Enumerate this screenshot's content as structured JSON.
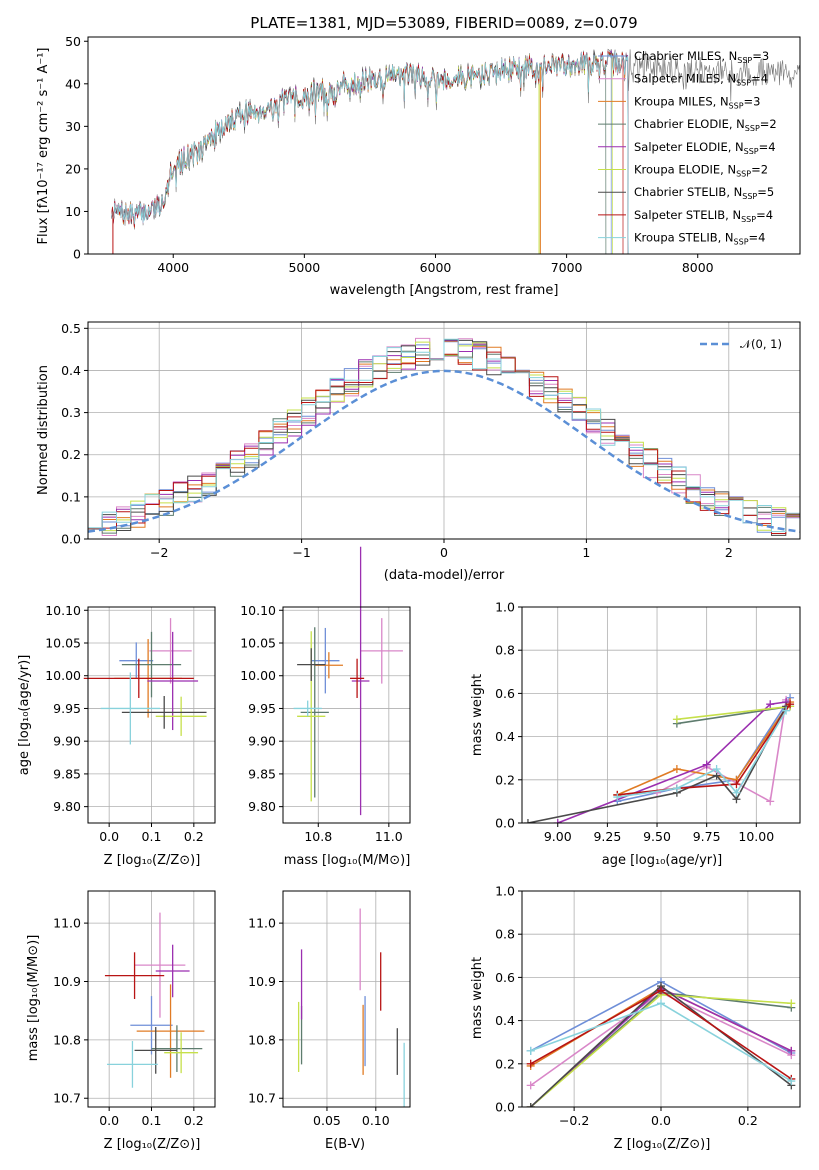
{
  "colors": [
    "#6f8fd8",
    "#d987c8",
    "#e07b24",
    "#5e7c6e",
    "#9b2fb0",
    "#c6e04a",
    "#4a4a4a",
    "#b81414",
    "#88d2dc"
  ],
  "spectrum": {
    "title": "PLATE=1381, MJD=53089, FIBERID=0089, z=0.079",
    "xlabel": "wavelength [Angstrom, rest frame]",
    "ylabel": "Flux [fλ10⁻¹⁷ erg cm⁻² s⁻¹ A⁻¹]",
    "xticks": [
      "4000",
      "5000",
      "6000",
      "7000",
      "8000"
    ],
    "yticks": [
      "0",
      "10",
      "20",
      "30",
      "40",
      "50"
    ],
    "legend": [
      "Chabrier MILES, N_SSP=3",
      "Salpeter MILES, N_SSP=4",
      "Kroupa MILES, N_SSP=3",
      "Chabrier ELODIE, N_SSP=2",
      "Salpeter ELODIE, N_SSP=4",
      "Kroupa ELODIE, N_SSP=2",
      "Chabrier STELIB, N_SSP=5",
      "Salpeter STELIB, N_SSP=4",
      "Kroupa STELIB, N_SSP=4"
    ]
  },
  "residuals": {
    "xlabel": "(data-model)/error",
    "ylabel": "Normed distribution",
    "xticks": [
      "−2",
      "−1",
      "0",
      "1",
      "2"
    ],
    "yticks": [
      "0.0",
      "0.1",
      "0.2",
      "0.3",
      "0.4",
      "0.5"
    ],
    "legend": "𝒩(0, 1)"
  },
  "panels": {
    "age_Z": {
      "xlabel": "Z [log₁₀(Z/Z⊙)]",
      "ylabel": "age  [log₁₀(age/yr)]",
      "xticks": [
        "0.0",
        "0.1",
        "0.2"
      ],
      "yticks": [
        "9.80",
        "9.85",
        "9.90",
        "9.95",
        "10.00",
        "10.05",
        "10.10"
      ]
    },
    "age_mass": {
      "xlabel": "mass [log₁₀(M/M⊙)]",
      "xticks": [
        "10.8",
        "11.0"
      ],
      "yticks": [
        "9.80",
        "9.85",
        "9.90",
        "9.95",
        "10.00",
        "10.05",
        "10.10"
      ]
    },
    "mw_age": {
      "xlabel": "age  [log₁₀(age/yr)]",
      "ylabel": "mass weight",
      "xticks": [
        "9.00",
        "9.25",
        "9.50",
        "9.75",
        "10.00"
      ],
      "yticks": [
        "0.0",
        "0.2",
        "0.4",
        "0.6",
        "0.8",
        "1.0"
      ]
    },
    "mass_Z": {
      "xlabel": "Z [log₁₀(Z/Z⊙)]",
      "ylabel": "mass [log₁₀(M/M⊙)]",
      "xticks": [
        "0.0",
        "0.1",
        "0.2"
      ],
      "yticks": [
        "10.7",
        "10.8",
        "10.9",
        "11.0"
      ]
    },
    "mass_ebv": {
      "xlabel": "E(B-V)",
      "xticks": [
        "0.05",
        "0.10"
      ],
      "yticks": [
        "10.7",
        "10.8",
        "10.9",
        "11.0"
      ]
    },
    "mw_Z": {
      "xlabel": "Z [log₁₀(Z/Z⊙)]",
      "ylabel": "mass weight",
      "xticks": [
        "−0.2",
        "0.0",
        "0.2"
      ],
      "yticks": [
        "0.0",
        "0.2",
        "0.4",
        "0.6",
        "0.8",
        "1.0"
      ]
    }
  },
  "chart_data": [
    {
      "type": "line",
      "xlim": [
        3350,
        8780
      ],
      "ylim": [
        0,
        51
      ],
      "spectrum_anchors": [
        [
          3530,
          10
        ],
        [
          3700,
          9
        ],
        [
          3800,
          10
        ],
        [
          3920,
          12
        ],
        [
          3980,
          20
        ],
        [
          4100,
          23
        ],
        [
          4200,
          24
        ],
        [
          4300,
          28
        ],
        [
          4400,
          30
        ],
        [
          4500,
          33
        ],
        [
          4700,
          34
        ],
        [
          4850,
          36
        ],
        [
          5000,
          37
        ],
        [
          5100,
          39
        ],
        [
          5200,
          37
        ],
        [
          5300,
          40
        ],
        [
          5500,
          41
        ],
        [
          5700,
          42
        ],
        [
          5900,
          42
        ],
        [
          6100,
          41
        ],
        [
          6300,
          42
        ],
        [
          6500,
          43
        ],
        [
          6700,
          44
        ],
        [
          6900,
          44
        ],
        [
          7100,
          45
        ],
        [
          7300,
          45
        ],
        [
          7500,
          45
        ],
        [
          7700,
          44
        ],
        [
          7900,
          43
        ],
        [
          8100,
          43
        ],
        [
          8300,
          43
        ],
        [
          8500,
          43
        ],
        [
          8780,
          42
        ]
      ]
    },
    {
      "type": "bar",
      "xlim": [
        -2.5,
        2.5
      ],
      "ylim": [
        0,
        0.515
      ],
      "bin_width": 0.1,
      "gaussian": {
        "mean": 0,
        "sigma": 1
      }
    },
    {
      "type": "scatter",
      "xlim": [
        -0.05,
        0.25
      ],
      "ylim": [
        9.775,
        10.105
      ],
      "points": [
        {
          "x": 0.064,
          "y": 10.023,
          "xerr": 0.04,
          "yerr": 0.028
        },
        {
          "x": 0.145,
          "y": 10.038,
          "xerr": 0.05,
          "yerr": 0.05
        },
        {
          "x": 0.092,
          "y": 9.996,
          "xerr": 0.08,
          "yerr": 0.06
        },
        {
          "x": 0.1,
          "y": 10.017,
          "xerr": 0.07,
          "yerr": 0.05
        },
        {
          "x": 0.15,
          "y": 9.992,
          "xerr": 0.06,
          "yerr": 0.075
        },
        {
          "x": 0.17,
          "y": 9.938,
          "xerr": 0.06,
          "yerr": 0.03
        },
        {
          "x": 0.13,
          "y": 9.944,
          "xerr": 0.1,
          "yerr": 0.025
        },
        {
          "x": 0.07,
          "y": 9.996,
          "xerr": 0.13,
          "yerr": 0.03
        },
        {
          "x": 0.05,
          "y": 9.95,
          "xerr": 0.07,
          "yerr": 0.055
        }
      ]
    },
    {
      "type": "scatter",
      "xlim": [
        10.7,
        11.06
      ],
      "ylim": [
        9.775,
        10.105
      ],
      "points": [
        {
          "x": 10.82,
          "y": 10.023,
          "xerr": 0.04,
          "yerr": 0.05
        },
        {
          "x": 10.98,
          "y": 10.038,
          "xerr": 0.06,
          "yerr": 0.05
        },
        {
          "x": 10.83,
          "y": 10.016,
          "xerr": 0.04,
          "yerr": 0.02
        },
        {
          "x": 10.79,
          "y": 9.944,
          "xerr": 0.04,
          "yerr": 0.13
        },
        {
          "x": 10.92,
          "y": 9.992,
          "xerr": 0.025,
          "yerr": 0.205
        },
        {
          "x": 10.78,
          "y": 9.938,
          "xerr": 0.04,
          "yerr": 0.13
        },
        {
          "x": 10.78,
          "y": 10.017,
          "xerr": 0.04,
          "yerr": 0.025
        },
        {
          "x": 10.91,
          "y": 9.996,
          "xerr": 0.02,
          "yerr": 0.03
        },
        {
          "x": 10.77,
          "y": 9.95,
          "xerr": 0.04,
          "yerr": 0.012
        }
      ]
    },
    {
      "type": "line",
      "xlim": [
        8.82,
        10.22
      ],
      "ylim": [
        0,
        1
      ],
      "series": [
        {
          "x": [
            9.3,
            9.6,
            9.9,
            10.17
          ],
          "y": [
            0.1,
            0.16,
            0.2,
            0.58
          ]
        },
        {
          "x": [
            9.5,
            9.75,
            10.07,
            10.15
          ],
          "y": [
            0.14,
            0.26,
            0.1,
            0.57
          ]
        },
        {
          "x": [
            9.3,
            9.6,
            9.9,
            10.17
          ],
          "y": [
            0.13,
            0.25,
            0.2,
            0.56
          ]
        },
        {
          "x": [
            9.6,
            10.17
          ],
          "y": [
            0.46,
            0.54
          ]
        },
        {
          "x": [
            9.0,
            9.75,
            10.07,
            10.15
          ],
          "y": [
            0.0,
            0.27,
            0.55,
            0.56
          ]
        },
        {
          "x": [
            9.6,
            10.17
          ],
          "y": [
            0.48,
            0.54
          ]
        },
        {
          "x": [
            8.85,
            9.6,
            9.8,
            9.9,
            10.15
          ],
          "y": [
            0.0,
            0.14,
            0.22,
            0.11,
            0.54
          ]
        },
        {
          "x": [
            9.3,
            9.6,
            9.9,
            10.17
          ],
          "y": [
            0.13,
            0.16,
            0.18,
            0.55
          ]
        },
        {
          "x": [
            9.3,
            9.6,
            9.8,
            9.9,
            10.15
          ],
          "y": [
            0.12,
            0.16,
            0.25,
            0.14,
            0.52
          ]
        }
      ]
    },
    {
      "type": "scatter",
      "xlim": [
        -0.05,
        0.25
      ],
      "ylim": [
        10.685,
        11.055
      ],
      "points": [
        {
          "x": 0.1,
          "y": 10.825,
          "xerr": 0.05,
          "yerr": 0.05
        },
        {
          "x": 0.12,
          "y": 10.928,
          "xerr": 0.06,
          "yerr": 0.09
        },
        {
          "x": 0.145,
          "y": 10.815,
          "xerr": 0.08,
          "yerr": 0.08
        },
        {
          "x": 0.16,
          "y": 10.785,
          "xerr": 0.06,
          "yerr": 0.04
        },
        {
          "x": 0.15,
          "y": 10.918,
          "xerr": 0.04,
          "yerr": 0.045
        },
        {
          "x": 0.17,
          "y": 10.778,
          "xerr": 0.04,
          "yerr": 0.035
        },
        {
          "x": 0.11,
          "y": 10.782,
          "xerr": 0.05,
          "yerr": 0.04
        },
        {
          "x": 0.06,
          "y": 10.91,
          "xerr": 0.07,
          "yerr": 0.04
        },
        {
          "x": 0.055,
          "y": 10.758,
          "xerr": 0.06,
          "yerr": 0.04
        }
      ]
    },
    {
      "type": "scatter",
      "xlim": [
        0.005,
        0.135
      ],
      "ylim": [
        10.685,
        11.055
      ],
      "points": [
        {
          "x": 0.089,
          "y": 10.815,
          "yerr": 0.06
        },
        {
          "x": 0.084,
          "y": 10.955,
          "yerr": 0.07
        },
        {
          "x": 0.087,
          "y": 10.8,
          "yerr": 0.06
        },
        {
          "x": 0.024,
          "y": 10.808,
          "yerr": 0.05
        },
        {
          "x": 0.024,
          "y": 10.895,
          "yerr": 0.06
        },
        {
          "x": 0.021,
          "y": 10.805,
          "yerr": 0.06
        },
        {
          "x": 0.122,
          "y": 10.78,
          "yerr": 0.04
        },
        {
          "x": 0.105,
          "y": 10.9,
          "yerr": 0.05
        },
        {
          "x": 0.129,
          "y": 10.74,
          "yerr": 0.055
        }
      ]
    },
    {
      "type": "line",
      "xlim": [
        -0.32,
        0.32
      ],
      "ylim": [
        0,
        1
      ],
      "x": [
        -0.3,
        0.0,
        0.3
      ],
      "series": [
        {
          "y": [
            0.26,
            0.58,
            0.25
          ]
        },
        {
          "y": [
            0.1,
            0.53,
            0.24
          ]
        },
        {
          "y": [
            0.19,
            0.55,
            0.26
          ]
        },
        {
          "y": [
            0.0,
            0.53,
            0.46
          ]
        },
        {
          "y": [
            0.0,
            0.55,
            0.26
          ]
        },
        {
          "y": [
            0.0,
            0.52,
            0.48
          ]
        },
        {
          "y": [
            0.0,
            0.56,
            0.1
          ]
        },
        {
          "y": [
            0.2,
            0.54,
            0.13
          ]
        },
        {
          "y": [
            0.26,
            0.48,
            0.12
          ]
        }
      ]
    }
  ]
}
